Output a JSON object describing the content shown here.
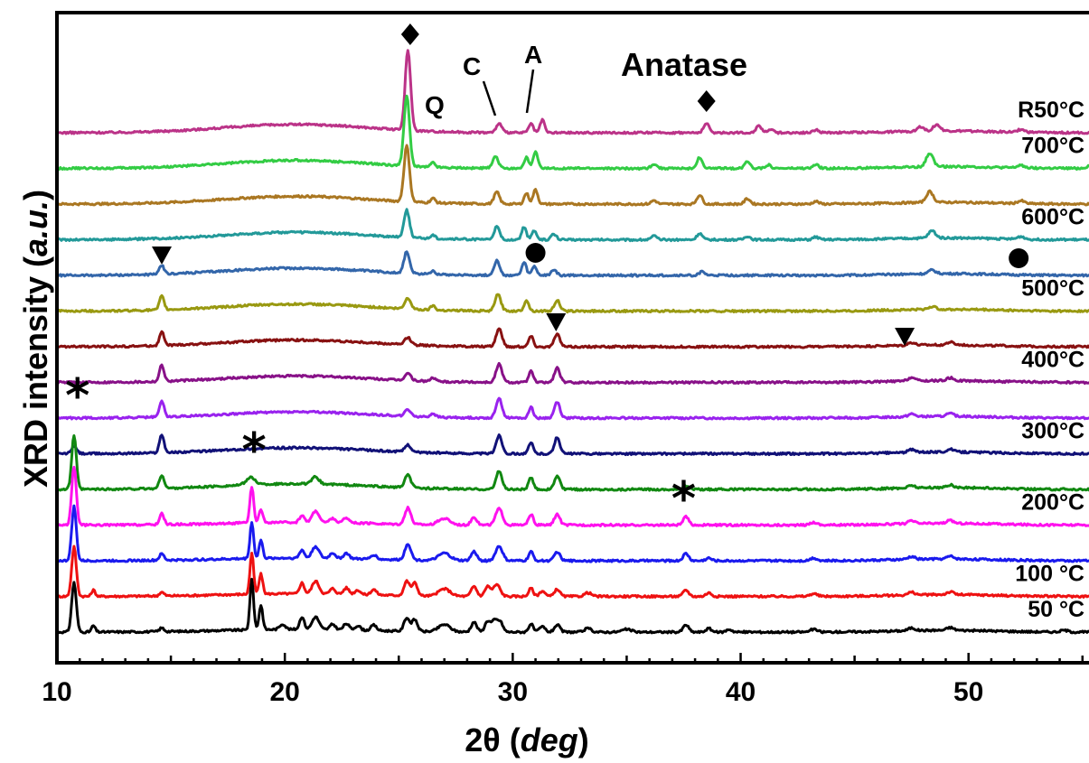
{
  "chart_data": {
    "type": "line",
    "title": "",
    "xlabel": "2θ (deg)",
    "ylabel": "XRD intensity (a.u.)",
    "xlim": [
      10,
      56
    ],
    "x_ticks": [
      "10",
      "20",
      "30",
      "40",
      "50"
    ],
    "grid": false,
    "legend": "labels at right end of each trace",
    "stack_offset": 39.5,
    "series": [
      {
        "name": "50 °C",
        "color": "#000000",
        "baseline": 0,
        "peaks": [
          [
            10.75,
            55,
            0.1
          ],
          [
            11.6,
            7,
            0.08
          ],
          [
            14.6,
            4,
            0.1
          ],
          [
            18.55,
            55,
            0.08
          ],
          [
            18.95,
            27,
            0.08
          ],
          [
            19.9,
            6,
            0.12
          ],
          [
            20.75,
            14,
            0.1
          ],
          [
            21.35,
            14,
            0.15
          ],
          [
            22.1,
            6,
            0.12
          ],
          [
            22.7,
            7,
            0.12
          ],
          [
            23.2,
            5,
            0.12
          ],
          [
            23.9,
            6,
            0.12
          ],
          [
            25.35,
            15,
            0.12
          ],
          [
            25.7,
            13,
            0.12
          ],
          [
            27.0,
            8,
            0.25
          ],
          [
            28.3,
            11,
            0.12
          ],
          [
            28.9,
            12,
            0.12
          ],
          [
            29.2,
            12,
            0.12
          ],
          [
            29.45,
            11,
            0.12
          ],
          [
            30.8,
            9,
            0.1
          ],
          [
            31.3,
            6,
            0.12
          ],
          [
            31.95,
            8,
            0.12
          ],
          [
            33.3,
            4,
            0.15
          ],
          [
            35.0,
            3,
            0.2
          ],
          [
            37.6,
            8,
            0.12
          ],
          [
            38.6,
            4,
            0.12
          ],
          [
            39.5,
            3,
            0.12
          ],
          [
            43.2,
            3,
            0.15
          ],
          [
            47.5,
            3,
            0.15
          ],
          [
            49.2,
            3,
            0.15
          ],
          [
            54.2,
            2,
            0.15
          ]
        ]
      },
      {
        "name": "100 °C",
        "color": "#ee1111",
        "baseline": 1,
        "peaks": [
          [
            10.75,
            55,
            0.1
          ],
          [
            11.6,
            7,
            0.08
          ],
          [
            14.6,
            4,
            0.1
          ],
          [
            18.55,
            45,
            0.08
          ],
          [
            18.95,
            22,
            0.08
          ],
          [
            20.75,
            12,
            0.1
          ],
          [
            21.35,
            14,
            0.15
          ],
          [
            22.1,
            6,
            0.12
          ],
          [
            22.7,
            7,
            0.12
          ],
          [
            23.2,
            5,
            0.12
          ],
          [
            23.9,
            6,
            0.12
          ],
          [
            25.35,
            16,
            0.12
          ],
          [
            25.7,
            14,
            0.12
          ],
          [
            27.0,
            8,
            0.25
          ],
          [
            28.3,
            11,
            0.12
          ],
          [
            28.9,
            11,
            0.12
          ],
          [
            29.3,
            13,
            0.15
          ],
          [
            30.8,
            9,
            0.1
          ],
          [
            31.3,
            6,
            0.12
          ],
          [
            31.95,
            8,
            0.12
          ],
          [
            33.3,
            4,
            0.15
          ],
          [
            37.6,
            7,
            0.12
          ],
          [
            38.6,
            4,
            0.12
          ],
          [
            43.2,
            3,
            0.15
          ],
          [
            47.5,
            3,
            0.15
          ],
          [
            49.2,
            3,
            0.15
          ]
        ]
      },
      {
        "name": "",
        "color": "#1a1aee",
        "baseline": 2,
        "peaks": [
          [
            10.75,
            60,
            0.1
          ],
          [
            14.6,
            7,
            0.1
          ],
          [
            18.55,
            40,
            0.08
          ],
          [
            18.95,
            20,
            0.08
          ],
          [
            20.75,
            9,
            0.1
          ],
          [
            21.35,
            13,
            0.15
          ],
          [
            22.1,
            6,
            0.12
          ],
          [
            22.7,
            6,
            0.12
          ],
          [
            23.9,
            5,
            0.12
          ],
          [
            25.4,
            18,
            0.13
          ],
          [
            27.0,
            8,
            0.25
          ],
          [
            28.3,
            10,
            0.12
          ],
          [
            29.4,
            16,
            0.15
          ],
          [
            30.8,
            10,
            0.1
          ],
          [
            31.95,
            10,
            0.12
          ],
          [
            37.6,
            8,
            0.12
          ],
          [
            38.6,
            3,
            0.12
          ],
          [
            43.2,
            3,
            0.15
          ],
          [
            47.5,
            3,
            0.15
          ],
          [
            49.2,
            3,
            0.15
          ]
        ]
      },
      {
        "name": "200°C",
        "color": "#ff11ee",
        "baseline": 3,
        "peaks": [
          [
            10.75,
            65,
            0.1
          ],
          [
            14.6,
            12,
            0.1
          ],
          [
            18.55,
            40,
            0.08
          ],
          [
            18.95,
            15,
            0.08
          ],
          [
            20.75,
            8,
            0.1
          ],
          [
            21.35,
            13,
            0.15
          ],
          [
            22.1,
            5,
            0.12
          ],
          [
            22.7,
            6,
            0.12
          ],
          [
            25.4,
            18,
            0.13
          ],
          [
            27.0,
            7,
            0.25
          ],
          [
            28.3,
            9,
            0.12
          ],
          [
            29.4,
            18,
            0.15
          ],
          [
            30.8,
            12,
            0.1
          ],
          [
            31.95,
            12,
            0.12
          ],
          [
            37.6,
            9,
            0.12
          ],
          [
            43.2,
            3,
            0.15
          ],
          [
            47.5,
            3,
            0.15
          ],
          [
            49.2,
            3,
            0.15
          ]
        ]
      },
      {
        "name": "",
        "color": "#118811",
        "baseline": 4,
        "peaks": [
          [
            10.75,
            60,
            0.1
          ],
          [
            14.6,
            15,
            0.1
          ],
          [
            18.5,
            8,
            0.2
          ],
          [
            21.35,
            8,
            0.15
          ],
          [
            25.4,
            14,
            0.13
          ],
          [
            29.4,
            20,
            0.13
          ],
          [
            30.8,
            13,
            0.1
          ],
          [
            31.95,
            15,
            0.12
          ],
          [
            37.6,
            4,
            0.12
          ],
          [
            47.5,
            3,
            0.15
          ],
          [
            49.2,
            3,
            0.15
          ]
        ]
      },
      {
        "name": "300°C",
        "color": "#111177",
        "baseline": 5,
        "peaks": [
          [
            10.75,
            8,
            0.12
          ],
          [
            14.6,
            20,
            0.1
          ],
          [
            25.4,
            8,
            0.13
          ],
          [
            29.4,
            20,
            0.13
          ],
          [
            30.8,
            12,
            0.1
          ],
          [
            31.95,
            18,
            0.12
          ],
          [
            47.5,
            3,
            0.15
          ],
          [
            49.2,
            3,
            0.15
          ]
        ]
      },
      {
        "name": "",
        "color": "#9922ee",
        "baseline": 6,
        "peaks": [
          [
            14.6,
            18,
            0.1
          ],
          [
            25.4,
            7,
            0.13
          ],
          [
            26.5,
            4,
            0.1
          ],
          [
            29.4,
            22,
            0.13
          ],
          [
            30.8,
            12,
            0.1
          ],
          [
            31.95,
            18,
            0.12
          ],
          [
            47.5,
            3,
            0.15
          ],
          [
            49.2,
            3,
            0.15
          ]
        ]
      },
      {
        "name": "400°C",
        "color": "#881188",
        "baseline": 7,
        "peaks": [
          [
            14.6,
            18,
            0.1
          ],
          [
            25.4,
            8,
            0.13
          ],
          [
            26.5,
            4,
            0.1
          ],
          [
            29.4,
            20,
            0.13
          ],
          [
            30.8,
            12,
            0.1
          ],
          [
            31.95,
            16,
            0.12
          ],
          [
            47.5,
            4,
            0.15
          ],
          [
            49.2,
            3,
            0.15
          ]
        ]
      },
      {
        "name": "",
        "color": "#881111",
        "baseline": 8,
        "peaks": [
          [
            14.6,
            15,
            0.1
          ],
          [
            25.4,
            8,
            0.13
          ],
          [
            29.4,
            20,
            0.13
          ],
          [
            30.8,
            12,
            0.1
          ],
          [
            31.95,
            14,
            0.12
          ],
          [
            47.5,
            3,
            0.15
          ],
          [
            49.2,
            3,
            0.15
          ]
        ]
      },
      {
        "name": "500°C",
        "color": "#999911",
        "baseline": 9,
        "peaks": [
          [
            14.6,
            15,
            0.1
          ],
          [
            25.4,
            12,
            0.13
          ],
          [
            26.5,
            5,
            0.1
          ],
          [
            29.35,
            18,
            0.13
          ],
          [
            30.6,
            12,
            0.1
          ],
          [
            31.95,
            12,
            0.12
          ],
          [
            48.4,
            3,
            0.15
          ]
        ]
      },
      {
        "name": "",
        "color": "#3366aa",
        "baseline": 10,
        "peaks": [
          [
            14.6,
            10,
            0.1
          ],
          [
            25.35,
            24,
            0.12
          ],
          [
            26.5,
            4,
            0.1
          ],
          [
            29.3,
            16,
            0.12
          ],
          [
            30.5,
            14,
            0.1
          ],
          [
            30.95,
            10,
            0.1
          ],
          [
            31.8,
            6,
            0.12
          ],
          [
            38.3,
            4,
            0.12
          ],
          [
            48.4,
            4,
            0.15
          ]
        ]
      },
      {
        "name": "600°C",
        "color": "#229999",
        "baseline": 11,
        "peaks": [
          [
            25.35,
            30,
            0.12
          ],
          [
            26.5,
            4,
            0.1
          ],
          [
            29.3,
            14,
            0.12
          ],
          [
            30.5,
            14,
            0.1
          ],
          [
            30.95,
            10,
            0.1
          ],
          [
            31.8,
            6,
            0.12
          ],
          [
            36.2,
            4,
            0.12
          ],
          [
            38.2,
            7,
            0.12
          ],
          [
            40.3,
            4,
            0.12
          ],
          [
            43.3,
            3,
            0.12
          ],
          [
            48.4,
            8,
            0.15
          ],
          [
            52.3,
            3,
            0.15
          ]
        ]
      },
      {
        "name": "",
        "color": "#aa7722",
        "baseline": 12,
        "peaks": [
          [
            25.35,
            62,
            0.12
          ],
          [
            26.5,
            5,
            0.1
          ],
          [
            29.3,
            13,
            0.12
          ],
          [
            30.6,
            12,
            0.1
          ],
          [
            31.0,
            16,
            0.1
          ],
          [
            36.2,
            4,
            0.12
          ],
          [
            38.2,
            10,
            0.12
          ],
          [
            40.3,
            6,
            0.12
          ],
          [
            43.3,
            3,
            0.12
          ],
          [
            48.3,
            12,
            0.15
          ],
          [
            52.3,
            3,
            0.15
          ]
        ]
      },
      {
        "name": "700°C",
        "color": "#33cc44",
        "baseline": 13,
        "peaks": [
          [
            25.35,
            78,
            0.12
          ],
          [
            26.5,
            5,
            0.1
          ],
          [
            29.25,
            13,
            0.12
          ],
          [
            30.6,
            12,
            0.1
          ],
          [
            31.0,
            18,
            0.1
          ],
          [
            36.2,
            5,
            0.12
          ],
          [
            38.2,
            12,
            0.12
          ],
          [
            40.3,
            8,
            0.12
          ],
          [
            41.2,
            4,
            0.12
          ],
          [
            43.3,
            4,
            0.12
          ],
          [
            48.3,
            15,
            0.15
          ],
          [
            52.3,
            3,
            0.15
          ],
          [
            55.5,
            6,
            0.2
          ]
        ]
      },
      {
        "name": "R50°C",
        "color": "#bb3388",
        "baseline": 14,
        "peaks": [
          [
            25.4,
            88,
            0.12
          ],
          [
            29.4,
            10,
            0.12
          ],
          [
            30.8,
            10,
            0.1
          ],
          [
            31.3,
            14,
            0.1
          ],
          [
            38.5,
            10,
            0.12
          ],
          [
            40.8,
            8,
            0.12
          ],
          [
            41.3,
            4,
            0.12
          ],
          [
            43.3,
            3,
            0.12
          ],
          [
            47.9,
            5,
            0.15
          ],
          [
            48.6,
            7,
            0.15
          ],
          [
            52.3,
            3,
            0.15
          ]
        ]
      }
    ],
    "annotations": [
      {
        "text": "Anatase"
      },
      {
        "text": "Q"
      },
      {
        "text": "C"
      },
      {
        "text": "A"
      }
    ]
  }
}
